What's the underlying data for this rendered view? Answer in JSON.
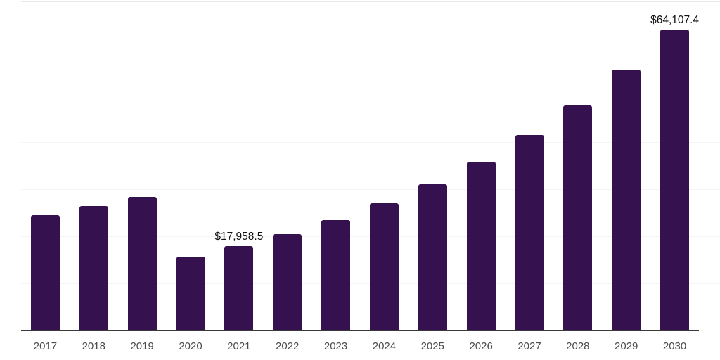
{
  "chart_data": {
    "type": "bar",
    "title": "",
    "xlabel": "",
    "ylabel": "",
    "categories": [
      "2017",
      "2018",
      "2019",
      "2020",
      "2021",
      "2022",
      "2023",
      "2024",
      "2025",
      "2026",
      "2027",
      "2028",
      "2029",
      "2030"
    ],
    "values": [
      24550,
      26500,
      28500,
      15700,
      17958.5,
      20500,
      23500,
      27100,
      31100,
      35900,
      41600,
      47900,
      55600,
      64107.4
    ],
    "point_labels": [
      {
        "index": 4,
        "text": "$17,958.5"
      },
      {
        "index": 13,
        "text": "$64,107.4"
      }
    ],
    "ylim": [
      0,
      70000
    ],
    "gridline_step": 10000,
    "grid": true,
    "legend": "none",
    "y_axis_labels_visible": false,
    "colors": {
      "bar": "#351150",
      "gridline": "#f4f4f4",
      "gridline_top": "#e8e8e8",
      "axis": "#3a3a3a",
      "tick_label": "#4b4b4b",
      "point_label": "#111111",
      "background": "#ffffff"
    }
  }
}
